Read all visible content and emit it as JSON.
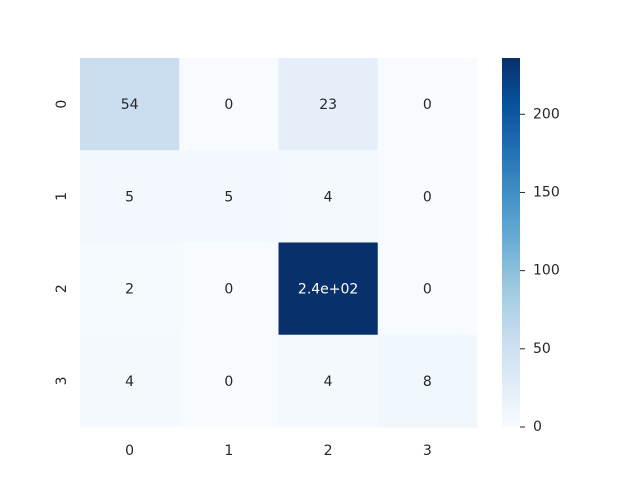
{
  "chart_data": {
    "type": "heatmap",
    "title": "",
    "xlabel": "",
    "ylabel": "",
    "x_categories": [
      "0",
      "1",
      "2",
      "3"
    ],
    "y_categories": [
      "0",
      "1",
      "2",
      "3"
    ],
    "values": [
      [
        54,
        0,
        23,
        0
      ],
      [
        5,
        5,
        4,
        0
      ],
      [
        2,
        0,
        240,
        0
      ],
      [
        4,
        0,
        4,
        8
      ]
    ],
    "annotations": [
      [
        "54",
        "0",
        "23",
        "0"
      ],
      [
        "5",
        "5",
        "4",
        "0"
      ],
      [
        "2",
        "0",
        "2.4e+02",
        "0"
      ],
      [
        "4",
        "0",
        "4",
        "8"
      ]
    ],
    "colormap": "Blues",
    "colorbar": {
      "range": [
        0,
        236
      ],
      "ticks": [
        0,
        50,
        100,
        150,
        200
      ],
      "tick_labels": [
        "0",
        "50",
        "100",
        "150",
        "200"
      ]
    },
    "grid": false
  }
}
